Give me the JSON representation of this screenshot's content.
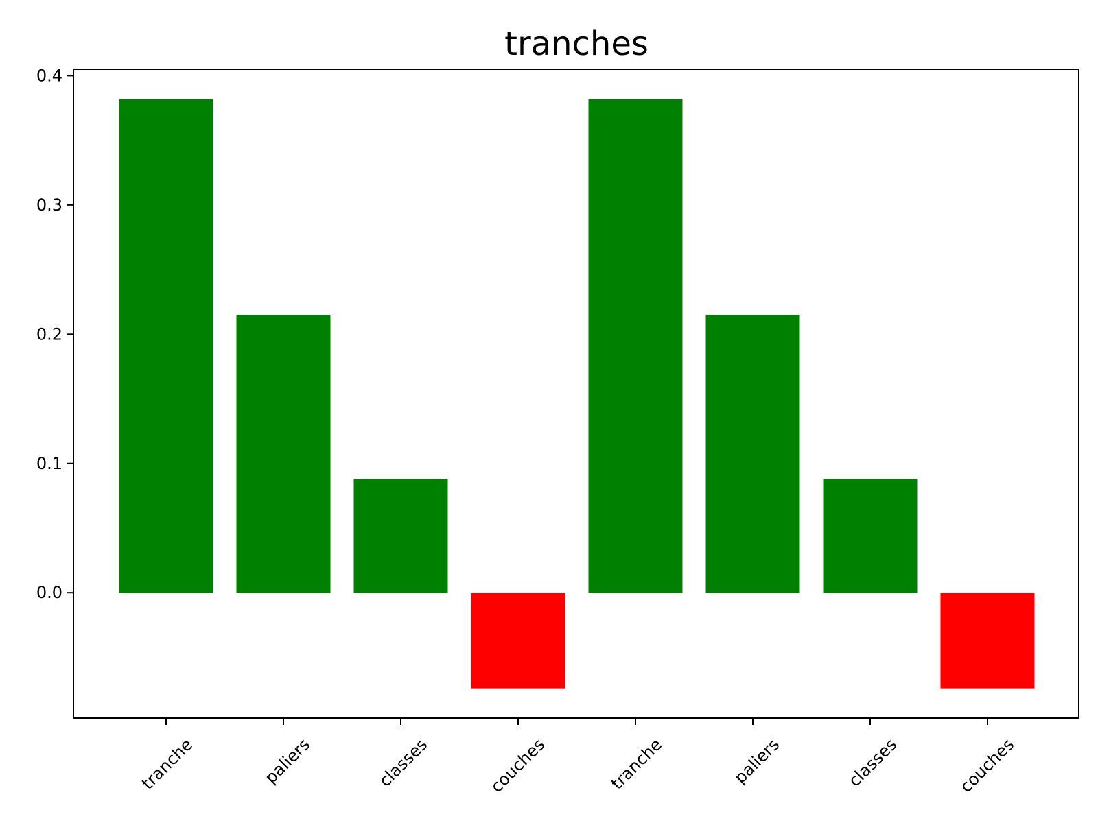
{
  "chart_data": {
    "type": "bar",
    "title": "tranches",
    "xlabel": "",
    "ylabel": "",
    "categories": [
      "tranche",
      "paliers",
      "classes",
      "couches",
      "tranche",
      "paliers",
      "classes",
      "couches"
    ],
    "values": [
      0.382,
      0.215,
      0.088,
      -0.074,
      0.382,
      0.215,
      0.088,
      -0.074
    ],
    "bar_colors": [
      "#008000",
      "#008000",
      "#008000",
      "#ff0000",
      "#008000",
      "#008000",
      "#008000",
      "#ff0000"
    ],
    "ylim": [
      -0.097,
      0.405
    ],
    "yticks": [
      0.0,
      0.1,
      0.2,
      0.3,
      0.4
    ],
    "ytick_labels": [
      "0.0",
      "0.1",
      "0.2",
      "0.3",
      "0.4"
    ],
    "grid": false,
    "legend": "none"
  }
}
